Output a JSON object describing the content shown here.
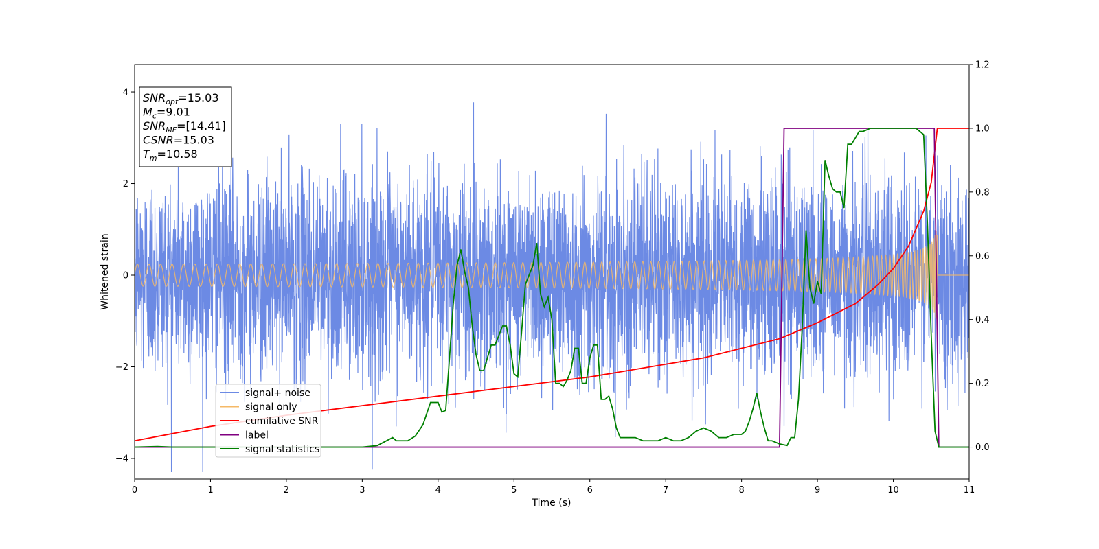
{
  "chart_data": {
    "type": "line",
    "xlabel": "Time (s)",
    "ylabel": "Whitened strain",
    "xlim": [
      0,
      11
    ],
    "ylim_left": [
      -4.45,
      4.6
    ],
    "ylim_right": [
      -0.1,
      1.2
    ],
    "x_ticks": [
      "0",
      "1",
      "2",
      "3",
      "4",
      "5",
      "6",
      "7",
      "8",
      "9",
      "10",
      "11"
    ],
    "y_ticks_left": [
      "4",
      "2",
      "0",
      "−2",
      "−4"
    ],
    "y_ticks_left_values": [
      4,
      2,
      0,
      -2,
      -4
    ],
    "y_ticks_right": [
      "1.2",
      "1.0",
      "0.8",
      "0.6",
      "0.4",
      "0.2",
      "0.0"
    ],
    "y_ticks_right_values": [
      1.2,
      1.0,
      0.8,
      0.6,
      0.4,
      0.2,
      0.0
    ],
    "legend_placement": "lower-left",
    "info_box": {
      "lines": [
        {
          "main": "SNR",
          "sub": "opt",
          "rest": "=15.03"
        },
        {
          "main": "M",
          "sub": "c",
          "rest": "=9.01"
        },
        {
          "main": "SNR",
          "sub": "MF",
          "rest": "=[14.41]"
        },
        {
          "main": "CSNR",
          "sub": "",
          "rest": "=15.03"
        },
        {
          "main": "T",
          "sub": "m",
          "rest": "=10.58"
        }
      ]
    },
    "series": [
      {
        "name": "signal+ noise",
        "color": "#6c8ae4",
        "axis": "left",
        "note": "white noise with std about 1.1"
      },
      {
        "name": "signal only",
        "color": "#f5b967",
        "axis": "left",
        "chirp": {
          "amp_start": 0.04,
          "amp_end": 1.0,
          "end_time": 10.58
        }
      },
      {
        "name": "cumilative SNR",
        "color": "#ff0000",
        "axis": "right",
        "x": [
          0,
          1,
          2,
          3,
          4,
          5,
          6,
          7,
          7.5,
          8,
          8.5,
          9,
          9.5,
          9.8,
          10,
          10.2,
          10.4,
          10.5,
          10.58,
          11
        ],
        "y": [
          0.02,
          0.065,
          0.1,
          0.13,
          0.16,
          0.19,
          0.22,
          0.26,
          0.28,
          0.31,
          0.34,
          0.39,
          0.45,
          0.51,
          0.56,
          0.63,
          0.74,
          0.83,
          1.0,
          1.0
        ]
      },
      {
        "name": "label",
        "color": "#800080",
        "axis": "right",
        "x": [
          0,
          8.5,
          8.56,
          10.54,
          10.6,
          11
        ],
        "y": [
          0,
          0,
          1,
          1,
          0,
          0
        ]
      },
      {
        "name": "signal statistics",
        "color": "#008000",
        "axis": "right",
        "x": [
          0,
          0.3,
          0.5,
          1,
          2,
          3,
          3.2,
          3.4,
          3.45,
          3.5,
          3.6,
          3.7,
          3.8,
          3.9,
          4,
          4.05,
          4.1,
          4.15,
          4.2,
          4.25,
          4.3,
          4.35,
          4.4,
          4.45,
          4.5,
          4.55,
          4.6,
          4.65,
          4.7,
          4.75,
          4.8,
          4.85,
          4.9,
          4.95,
          5,
          5.05,
          5.1,
          5.15,
          5.2,
          5.25,
          5.3,
          5.35,
          5.4,
          5.45,
          5.5,
          5.55,
          5.6,
          5.65,
          5.7,
          5.75,
          5.8,
          5.85,
          5.9,
          5.95,
          6,
          6.05,
          6.1,
          6.15,
          6.2,
          6.25,
          6.3,
          6.35,
          6.4,
          6.45,
          6.5,
          6.55,
          6.6,
          6.7,
          6.8,
          6.9,
          7,
          7.1,
          7.2,
          7.3,
          7.4,
          7.5,
          7.6,
          7.7,
          7.8,
          7.9,
          8,
          8.05,
          8.1,
          8.15,
          8.2,
          8.25,
          8.3,
          8.35,
          8.4,
          8.5,
          8.6,
          8.65,
          8.7,
          8.75,
          8.8,
          8.85,
          8.9,
          8.95,
          9,
          9.05,
          9.1,
          9.15,
          9.2,
          9.25,
          9.3,
          9.35,
          9.4,
          9.45,
          9.5,
          9.55,
          9.6,
          9.7,
          9.8,
          9.9,
          10,
          10.1,
          10.2,
          10.3,
          10.4,
          10.45,
          10.5,
          10.55,
          10.6,
          10.65,
          11
        ],
        "y": [
          0,
          0.002,
          0,
          0,
          0,
          0,
          0.005,
          0.03,
          0.02,
          0.02,
          0.02,
          0.035,
          0.07,
          0.14,
          0.14,
          0.11,
          0.115,
          0.28,
          0.45,
          0.57,
          0.62,
          0.55,
          0.5,
          0.38,
          0.29,
          0.24,
          0.24,
          0.28,
          0.32,
          0.32,
          0.35,
          0.38,
          0.38,
          0.32,
          0.23,
          0.22,
          0.36,
          0.51,
          0.54,
          0.57,
          0.64,
          0.48,
          0.44,
          0.47,
          0.4,
          0.2,
          0.2,
          0.19,
          0.21,
          0.24,
          0.31,
          0.31,
          0.2,
          0.2,
          0.28,
          0.32,
          0.32,
          0.15,
          0.15,
          0.16,
          0.12,
          0.06,
          0.03,
          0.03,
          0.03,
          0.03,
          0.03,
          0.02,
          0.02,
          0.02,
          0.03,
          0.02,
          0.02,
          0.03,
          0.05,
          0.06,
          0.05,
          0.03,
          0.03,
          0.04,
          0.04,
          0.05,
          0.08,
          0.12,
          0.17,
          0.11,
          0.06,
          0.02,
          0.02,
          0.01,
          0.005,
          0.03,
          0.03,
          0.15,
          0.38,
          0.68,
          0.5,
          0.45,
          0.52,
          0.48,
          0.9,
          0.85,
          0.81,
          0.8,
          0.8,
          0.75,
          0.95,
          0.95,
          0.97,
          0.99,
          0.99,
          1.0,
          1.0,
          1.0,
          1.0,
          1.0,
          1.0,
          1.0,
          0.98,
          0.7,
          0.35,
          0.05,
          0,
          0,
          0
        ]
      }
    ]
  }
}
